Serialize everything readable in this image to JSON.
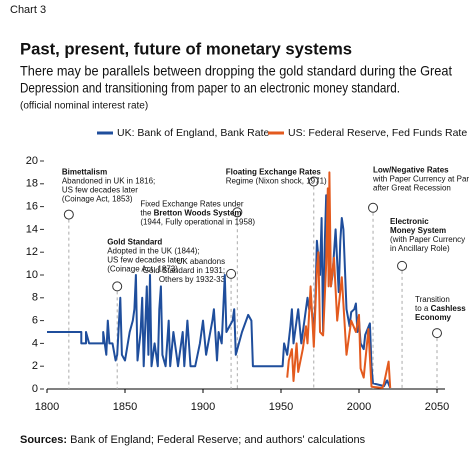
{
  "chart_data": {
    "type": "line",
    "label": "Chart 3",
    "title": "Past, present, future of monetary systems",
    "subtitle": [
      "There may be parallels between dropping the gold standard during the Great",
      "Depression and transitioning from paper to an electronic money standard."
    ],
    "note": "(official nominal interest rate)",
    "source": {
      "bold": "Sources:",
      "text": " Bank of England; Federal Reserve; and authors' calculations"
    },
    "xlim": [
      1800,
      2050
    ],
    "xticks": [
      1800,
      1850,
      1900,
      1950,
      2000,
      2050
    ],
    "ylim": [
      0,
      20
    ],
    "yticks": [
      0,
      2,
      4,
      6,
      8,
      10,
      12,
      14,
      16,
      18,
      20
    ],
    "series": [
      {
        "name": "UK: Bank of England, Bank Rate",
        "color": "#1f4e9c",
        "x": [
          1800,
          1822,
          1822,
          1825,
          1825,
          1827,
          1836,
          1836,
          1838,
          1839,
          1840,
          1842,
          1844,
          1845,
          1847,
          1848,
          1850,
          1853,
          1855,
          1856,
          1857,
          1858,
          1860,
          1861,
          1862,
          1864,
          1865,
          1866,
          1867,
          1869,
          1871,
          1872,
          1873,
          1874,
          1876,
          1878,
          1879,
          1881,
          1883,
          1884,
          1887,
          1888,
          1890,
          1892,
          1895,
          1898,
          1900,
          1902,
          1906,
          1907,
          1909,
          1910,
          1912,
          1914,
          1915,
          1919,
          1920,
          1921,
          1925,
          1929,
          1931,
          1932,
          1951,
          1952,
          1954,
          1956,
          1957,
          1958,
          1960,
          1961,
          1963,
          1965,
          1967,
          1968,
          1969,
          1971,
          1972,
          1973,
          1975,
          1976,
          1977,
          1978,
          1979,
          1980,
          1981,
          1982,
          1983,
          1985,
          1987,
          1988,
          1989,
          1990,
          1992,
          1994,
          1995,
          1997,
          1998,
          1999,
          2000,
          2001,
          2003,
          2004,
          2007,
          2008,
          2009,
          2016,
          2018,
          2020
        ],
        "values": [
          5,
          5,
          4,
          4,
          5,
          4,
          4,
          5,
          3,
          6,
          4,
          4,
          2.5,
          3,
          8,
          3,
          2.5,
          5,
          6,
          7,
          10,
          2.5,
          5,
          8,
          2,
          9,
          3,
          10,
          2,
          4,
          2,
          7,
          9,
          3,
          2,
          6,
          2,
          5,
          3,
          2,
          5,
          2,
          6,
          2,
          2,
          4,
          6,
          3,
          6,
          7,
          2.5,
          5,
          4,
          10,
          5,
          6,
          7,
          3,
          5,
          6.5,
          6,
          2,
          2,
          4,
          3,
          5.5,
          7,
          4,
          6,
          7,
          4,
          6,
          8,
          7,
          8,
          5,
          7.5,
          13,
          10,
          15,
          5,
          12.5,
          17,
          14,
          16,
          9,
          10,
          14,
          8.5,
          13,
          15,
          14,
          7,
          5.5,
          6.75,
          7,
          7.5,
          5,
          6,
          4,
          3.5,
          4.75,
          5.75,
          2,
          0.5,
          0.25,
          0.75,
          0.1
        ]
      },
      {
        "name": "US: Federal Reserve, Fed Funds Rate",
        "color": "#e35a1e",
        "x": [
          1954,
          1955,
          1957,
          1958,
          1960,
          1961,
          1964,
          1966,
          1967,
          1969,
          1971,
          1973,
          1974,
          1975,
          1977,
          1979,
          1980,
          1980.5,
          1981,
          1982,
          1984,
          1986,
          1989,
          1992,
          1995,
          1998,
          2000,
          2001,
          2003,
          2006,
          2008,
          2015,
          2016,
          2019,
          2020
        ],
        "values": [
          1,
          2.5,
          3.5,
          0.7,
          4,
          1.5,
          3.5,
          5.5,
          4,
          9,
          3.7,
          10.5,
          12,
          5,
          4.7,
          11,
          17.6,
          9,
          19,
          9,
          11.5,
          6,
          9.8,
          3,
          6,
          5,
          6.5,
          1.8,
          1,
          5.25,
          0.2,
          0.1,
          0.5,
          2.4,
          0.1
        ]
      }
    ],
    "annotations": [
      {
        "x": 1814,
        "y": 15.3,
        "lines": [
          [
            {
              "bold": "Bimettalism"
            }
          ],
          [
            "Abandoned in UK in 1816;"
          ],
          [
            "US few decades later"
          ],
          [
            "(Coinage Act, 1853)"
          ]
        ]
      },
      {
        "x": 1845,
        "y": 9.0,
        "lines": [
          [
            {
              "bold": "Gold Standard"
            }
          ],
          [
            "Adopted in the UK (1844);"
          ],
          [
            "US few decades later"
          ],
          [
            "(Coinage Act, 1873)"
          ]
        ]
      },
      {
        "x": 1918,
        "y": 10.1,
        "lines": [
          [
            "UK abandons"
          ],
          [
            "Gold Standard in 1931;"
          ],
          [
            "Others by 1932-33"
          ]
        ]
      },
      {
        "x": 1922,
        "y": 15.5,
        "lines": [
          [
            "Fixed Exchange Rates under"
          ],
          [
            "the ",
            {
              "bold": "Bretton Woods System"
            }
          ],
          [
            "(1944, Fully operational in 1958)"
          ]
        ]
      },
      {
        "x": 1971,
        "y": 18.2,
        "lines": [
          [
            {
              "bold": "Floating Exchange Rates"
            }
          ],
          [
            "Regime (Nixon shock, 1971)"
          ]
        ]
      },
      {
        "x": 2009,
        "y": 15.9,
        "lines": [
          [
            {
              "bold": "Low/Negative Rates"
            }
          ],
          [
            "with Paper Currency at Par"
          ],
          [
            "after Great Recession"
          ]
        ]
      },
      {
        "x": 2027.6,
        "y": 10.8,
        "lines": [
          [
            {
              "bold": "Electronic"
            }
          ],
          [
            {
              "bold": "Money System"
            }
          ],
          [
            "(with Paper Currency"
          ],
          [
            "in Ancillary Role)"
          ]
        ]
      },
      {
        "x": 2050,
        "y": 4.9,
        "lines": [
          [
            "Transition"
          ],
          [
            "to a ",
            {
              "bold": "Cashless"
            }
          ],
          [
            {
              "bold": "Economy"
            }
          ]
        ]
      }
    ]
  }
}
